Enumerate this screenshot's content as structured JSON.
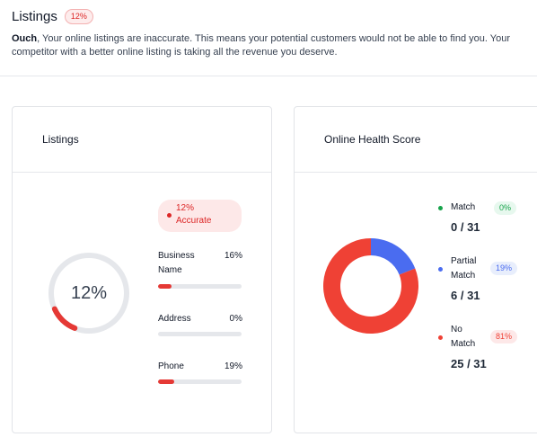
{
  "header": {
    "title": "Listings",
    "badge": "12%",
    "desc_bold": "Ouch",
    "desc_rest": ", Your online listings are inaccurate. This means your potential customers would not be able to find you. Your competitor with a better online listing is taking all the revenue you deserve."
  },
  "listings_card": {
    "title": "Listings",
    "gauge_label": "12%",
    "gauge_fraction": 0.12,
    "accurate_line1": "12%",
    "accurate_line2": "Accurate",
    "metrics": [
      {
        "name": "Business Name",
        "value": "16%",
        "fraction": 0.16
      },
      {
        "name": "Address",
        "value": "0%",
        "fraction": 0
      },
      {
        "name": "Phone",
        "value": "19%",
        "fraction": 0.19
      }
    ]
  },
  "health_card": {
    "title": "Online Health Score",
    "legend": [
      {
        "name": "Match",
        "badge": "0%",
        "count": "0 / 31",
        "color": "#16a34a",
        "bg": "#e7f8ee",
        "fraction": 0
      },
      {
        "name": "Partial Match",
        "badge": "19%",
        "count": "6 / 31",
        "color": "#4a6cf0",
        "bg": "#e8eefc",
        "fraction": 0.19
      },
      {
        "name": "No Match",
        "badge": "81%",
        "count": "25 / 31",
        "color": "#ef4135",
        "bg": "#fde8e8",
        "fraction": 0.81
      }
    ]
  },
  "colors": {
    "accent_red": "#e53935",
    "blue": "#4a6cf0",
    "green": "#16a34a"
  }
}
